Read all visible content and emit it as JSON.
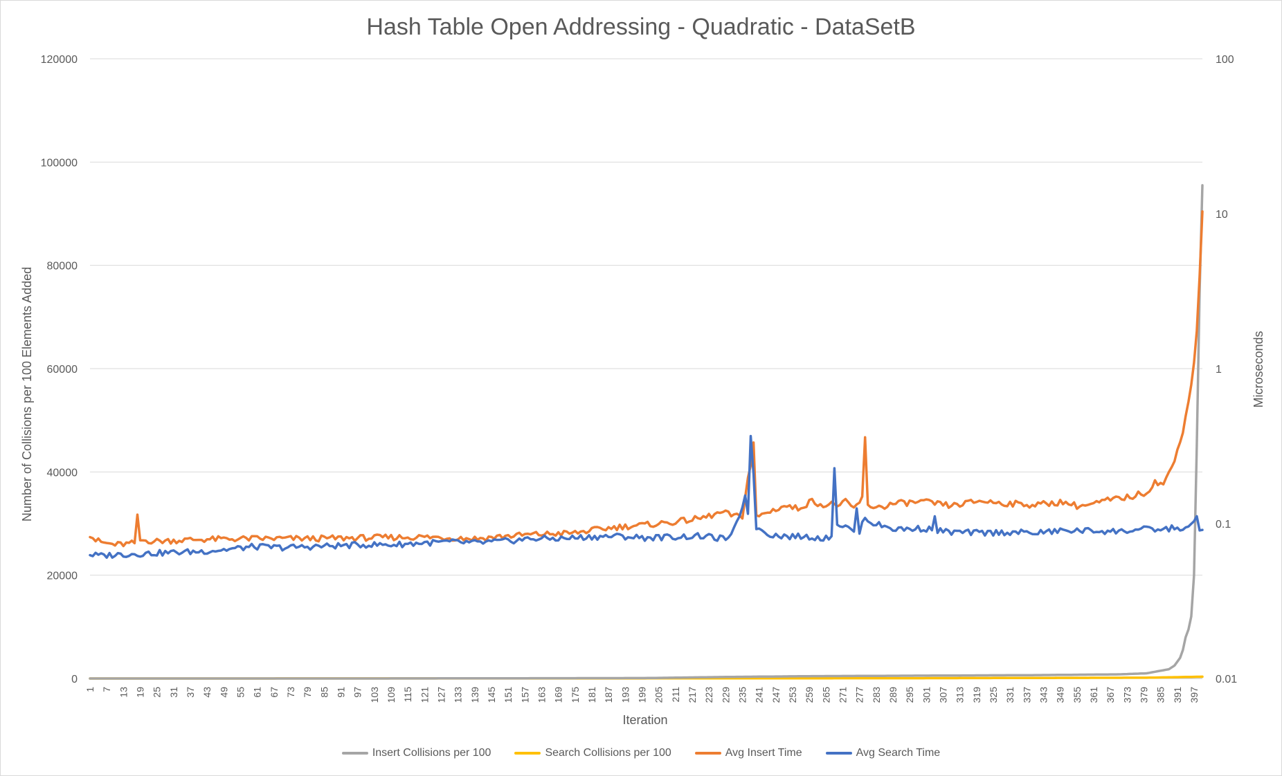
{
  "chart_data": {
    "type": "line",
    "title": "Hash Table Open Addressing - Quadratic - DataSetB",
    "xlabel": "Iteration",
    "ylabel_left": "Number of Collisions per 100 Elements Added",
    "ylabel_right": "Microseconds",
    "x_range": [
      1,
      400
    ],
    "x_tick_labels": [
      "1",
      "7",
      "13",
      "19",
      "25",
      "31",
      "37",
      "43",
      "49",
      "55",
      "61",
      "67",
      "73",
      "79",
      "85",
      "91",
      "97",
      "103",
      "109",
      "115",
      "121",
      "127",
      "133",
      "139",
      "145",
      "151",
      "157",
      "163",
      "169",
      "175",
      "181",
      "187",
      "193",
      "199",
      "205",
      "211",
      "217",
      "223",
      "229",
      "235",
      "241",
      "247",
      "253",
      "259",
      "265",
      "271",
      "277",
      "283",
      "289",
      "295",
      "301",
      "307",
      "313",
      "319",
      "325",
      "331",
      "337",
      "343",
      "349",
      "355",
      "361",
      "367",
      "373",
      "379",
      "385",
      "391",
      "397"
    ],
    "y_left": {
      "range": [
        0,
        120000
      ],
      "tick_labels": [
        "0",
        "20000",
        "40000",
        "60000",
        "80000",
        "100000",
        "120000"
      ]
    },
    "y_right": {
      "scale": "log",
      "range": [
        0.01,
        100
      ],
      "tick_labels": [
        "0.01",
        "0.1",
        "1",
        "10",
        "100"
      ]
    },
    "grid": true,
    "legend_position": "bottom",
    "series": [
      {
        "name": "Insert Collisions per 100",
        "axis": "left",
        "color": "#a5a5a5",
        "points": [
          [
            1,
            0
          ],
          [
            100,
            0
          ],
          [
            200,
            80
          ],
          [
            230,
            300
          ],
          [
            260,
            450
          ],
          [
            300,
            550
          ],
          [
            340,
            650
          ],
          [
            370,
            800
          ],
          [
            380,
            1000
          ],
          [
            385,
            1500
          ],
          [
            388,
            1800
          ],
          [
            390,
            2500
          ],
          [
            392,
            4000
          ],
          [
            393,
            5500
          ],
          [
            394,
            8000
          ],
          [
            395,
            9500
          ],
          [
            396,
            12000
          ],
          [
            397,
            20000
          ],
          [
            398,
            45000
          ],
          [
            399,
            75000
          ],
          [
            400,
            95500
          ]
        ]
      },
      {
        "name": "Search Collisions per 100",
        "axis": "left",
        "color": "#ffc000",
        "points": [
          [
            1,
            0
          ],
          [
            200,
            20
          ],
          [
            300,
            60
          ],
          [
            380,
            150
          ],
          [
            390,
            250
          ],
          [
            395,
            300
          ],
          [
            400,
            350
          ]
        ]
      },
      {
        "name": "Avg Insert Time",
        "axis": "right",
        "color": "#ed7d31",
        "points": [
          [
            1,
            0.085
          ],
          [
            3,
            0.078
          ],
          [
            6,
            0.075
          ],
          [
            10,
            0.073
          ],
          [
            15,
            0.074
          ],
          [
            17,
            0.075
          ],
          [
            18,
            0.11
          ],
          [
            19,
            0.078
          ],
          [
            25,
            0.077
          ],
          [
            40,
            0.079
          ],
          [
            60,
            0.08
          ],
          [
            80,
            0.08
          ],
          [
            100,
            0.081
          ],
          [
            120,
            0.082
          ],
          [
            140,
            0.08
          ],
          [
            150,
            0.083
          ],
          [
            160,
            0.085
          ],
          [
            175,
            0.087
          ],
          [
            180,
            0.09
          ],
          [
            190,
            0.095
          ],
          [
            200,
            0.098
          ],
          [
            210,
            0.102
          ],
          [
            220,
            0.108
          ],
          [
            228,
            0.118
          ],
          [
            232,
            0.112
          ],
          [
            235,
            0.11
          ],
          [
            238,
            0.24
          ],
          [
            239,
            0.33
          ],
          [
            240,
            0.11
          ],
          [
            245,
            0.12
          ],
          [
            250,
            0.13
          ],
          [
            255,
            0.125
          ],
          [
            260,
            0.14
          ],
          [
            265,
            0.13
          ],
          [
            268,
            0.135
          ],
          [
            270,
            0.13
          ],
          [
            272,
            0.138
          ],
          [
            275,
            0.125
          ],
          [
            278,
            0.145
          ],
          [
            279,
            0.35
          ],
          [
            280,
            0.13
          ],
          [
            285,
            0.128
          ],
          [
            290,
            0.135
          ],
          [
            300,
            0.138
          ],
          [
            310,
            0.13
          ],
          [
            320,
            0.14
          ],
          [
            330,
            0.135
          ],
          [
            340,
            0.132
          ],
          [
            350,
            0.138
          ],
          [
            355,
            0.13
          ],
          [
            360,
            0.132
          ],
          [
            365,
            0.14
          ],
          [
            370,
            0.145
          ],
          [
            375,
            0.15
          ],
          [
            380,
            0.16
          ],
          [
            383,
            0.185
          ],
          [
            386,
            0.18
          ],
          [
            388,
            0.21
          ],
          [
            390,
            0.25
          ],
          [
            392,
            0.35
          ],
          [
            393,
            0.4
          ],
          [
            394,
            0.5
          ],
          [
            395,
            0.6
          ],
          [
            396,
            0.8
          ],
          [
            397,
            1.1
          ],
          [
            398,
            1.8
          ],
          [
            399,
            4.0
          ],
          [
            400,
            10.0
          ]
        ]
      },
      {
        "name": "Avg Search Time",
        "axis": "right",
        "color": "#4472c4",
        "points": [
          [
            1,
            0.063
          ],
          [
            5,
            0.062
          ],
          [
            10,
            0.063
          ],
          [
            20,
            0.064
          ],
          [
            30,
            0.065
          ],
          [
            40,
            0.066
          ],
          [
            50,
            0.068
          ],
          [
            60,
            0.071
          ],
          [
            70,
            0.07
          ],
          [
            80,
            0.071
          ],
          [
            90,
            0.072
          ],
          [
            100,
            0.073
          ],
          [
            110,
            0.073
          ],
          [
            120,
            0.075
          ],
          [
            130,
            0.076
          ],
          [
            140,
            0.075
          ],
          [
            150,
            0.077
          ],
          [
            160,
            0.08
          ],
          [
            170,
            0.08
          ],
          [
            180,
            0.082
          ],
          [
            190,
            0.083
          ],
          [
            200,
            0.081
          ],
          [
            210,
            0.082
          ],
          [
            220,
            0.083
          ],
          [
            228,
            0.08
          ],
          [
            231,
            0.082
          ],
          [
            233,
            0.1
          ],
          [
            235,
            0.13
          ],
          [
            236,
            0.15
          ],
          [
            237,
            0.12
          ],
          [
            238,
            0.38
          ],
          [
            239,
            0.2
          ],
          [
            240,
            0.095
          ],
          [
            245,
            0.085
          ],
          [
            250,
            0.083
          ],
          [
            260,
            0.082
          ],
          [
            265,
            0.08
          ],
          [
            267,
            0.085
          ],
          [
            268,
            0.23
          ],
          [
            269,
            0.1
          ],
          [
            272,
            0.095
          ],
          [
            275,
            0.09
          ],
          [
            276,
            0.12
          ],
          [
            277,
            0.09
          ],
          [
            279,
            0.11
          ],
          [
            282,
            0.1
          ],
          [
            290,
            0.092
          ],
          [
            300,
            0.093
          ],
          [
            303,
            0.092
          ],
          [
            304,
            0.11
          ],
          [
            305,
            0.09
          ],
          [
            310,
            0.088
          ],
          [
            320,
            0.087
          ],
          [
            330,
            0.088
          ],
          [
            340,
            0.087
          ],
          [
            350,
            0.09
          ],
          [
            360,
            0.09
          ],
          [
            370,
            0.089
          ],
          [
            380,
            0.092
          ],
          [
            385,
            0.091
          ],
          [
            390,
            0.094
          ],
          [
            395,
            0.092
          ],
          [
            398,
            0.11
          ],
          [
            399,
            0.09
          ],
          [
            400,
            0.095
          ]
        ]
      }
    ]
  }
}
